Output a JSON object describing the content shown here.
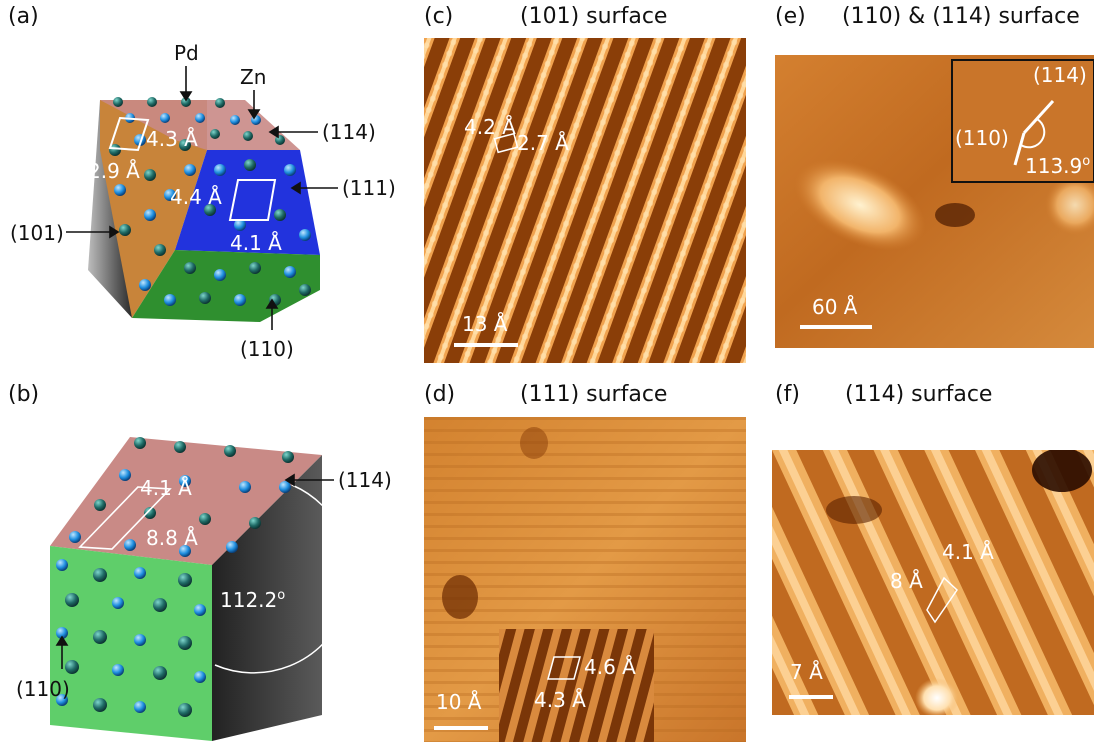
{
  "panel_letters": [
    "(a)",
    "(b)",
    "(c)",
    "(d)",
    "(e)",
    "(f)"
  ],
  "panel_a": {
    "pd_label": "Pd",
    "zn_label": "Zn",
    "facet_114": "(114)",
    "facet_111": "(111)",
    "facet_101": "(101)",
    "facet_110": "(110)",
    "dim_101_long": "4.3 Å",
    "dim_101_short": "2.9 Å",
    "dim_111_long": "4.4 Å",
    "dim_111_short": "4.1 Å"
  },
  "panel_b": {
    "facet_114": "(114)",
    "facet_110": "(110)",
    "dim_short": "4.1 Å",
    "dim_long": "8.8 Å",
    "angle": "112.2",
    "angle_unit": "o"
  },
  "panel_c": {
    "title": "(101) surface",
    "dim_a": "4.2 Å",
    "dim_b": "2.7 Å",
    "scale_bar": "13 Å"
  },
  "panel_d": {
    "title": "(111) surface",
    "dim_a": "4.6 Å",
    "dim_b": "4.3 Å",
    "scale_bar": "10 Å"
  },
  "panel_e": {
    "title": "(110) & (114) surface",
    "inset_114": "(114)",
    "inset_110": "(110)",
    "angle": "113.9",
    "angle_unit": "o",
    "scale_bar": "60 Å"
  },
  "panel_f": {
    "title": "(114) surface",
    "dim_a": "4.1 Å",
    "dim_b": "8 Å",
    "scale_bar": "7 Å"
  },
  "colors": {
    "facet_101": "#c8843a",
    "facet_111": "#2233dd",
    "facet_110": "#2f8f2f",
    "facet_114": "#c98a86",
    "side_dark": "#3a3a3a",
    "stm_light": "#f4c37a",
    "stm_dark": "#6b2a00",
    "pd_atom": "#1f6b66",
    "zn_atom": "#1f8fe0"
  }
}
